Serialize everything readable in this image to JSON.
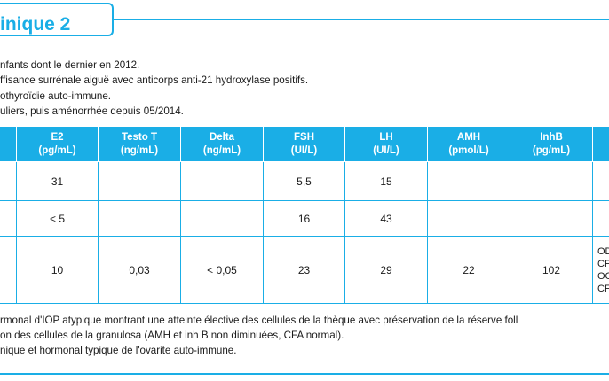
{
  "title": "inique 2",
  "intro_lines": [
    "nfants dont le dernier en 2012.",
    "ffisance surrénale aiguë avec anticorps anti-21 hydroxylase positifs.",
    "othyroïdie auto-immune.",
    "uliers, puis aménorrhée depuis 05/2014."
  ],
  "table": {
    "headers": [
      {
        "name": "",
        "unit": ""
      },
      {
        "name": "E2",
        "unit": "(pg/mL)"
      },
      {
        "name": "Testo T",
        "unit": "(ng/mL)"
      },
      {
        "name": "Delta",
        "unit": "(ng/mL)"
      },
      {
        "name": "FSH",
        "unit": "(UI/L)"
      },
      {
        "name": "LH",
        "unit": "(UI/L)"
      },
      {
        "name": "AMH",
        "unit": "(pmol/L)"
      },
      {
        "name": "InhB",
        "unit": "(pg/mL)"
      },
      {
        "name": "",
        "unit": ""
      }
    ],
    "rows": [
      [
        "",
        "31",
        "",
        "",
        "5,5",
        "15",
        "",
        "",
        ""
      ],
      [
        "",
        "< 5",
        "",
        "",
        "16",
        "43",
        "",
        "",
        ""
      ],
      [
        "",
        "10",
        "0,03",
        "< 0,05",
        "23",
        "29",
        "22",
        "102",
        "OD\nCF\nOG\nCF"
      ]
    ]
  },
  "conclusion_lines": [
    "rmonal d'IOP atypique montrant une atteinte élective des cellules de la thèque avec préservation de la réserve foll",
    "on des cellules de la granulosa (AMH et inh B non diminuées, CFA normal).",
    "nique et hormonal typique de l'ovarite auto-immune."
  ],
  "colors": {
    "accent": "#1aaee6"
  }
}
